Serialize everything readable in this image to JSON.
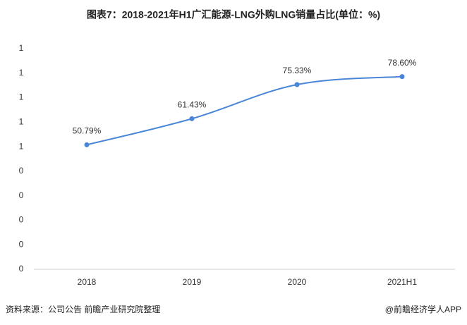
{
  "chart_data": {
    "type": "line",
    "title": "图表7：2018-2021年H1广汇能源-LNG外购LNG销量占比(单位：%)",
    "categories": [
      "2018",
      "2019",
      "2020",
      "2021H1"
    ],
    "series": [
      {
        "name": "外购LNG销量占比",
        "color": "#4a86d8",
        "values": [
          0.5079,
          0.6143,
          0.7533,
          0.786
        ],
        "value_labels": [
          "50.79%",
          "61.43%",
          "75.33%",
          "78.60%"
        ]
      }
    ],
    "ylim": [
      0,
      0.9
    ],
    "yticks": [
      0,
      {
        "value": 0.1,
        "label": "0"
      },
      {
        "value": 0.2,
        "label": "0"
      },
      {
        "value": 0.3,
        "label": "0"
      },
      {
        "value": 0.4,
        "label": "0"
      },
      {
        "value": 0.5,
        "label": "1"
      },
      {
        "value": 0.6,
        "label": "1"
      },
      {
        "value": 0.7,
        "label": "1"
      },
      {
        "value": 0.8,
        "label": "1"
      },
      {
        "value": 0.9,
        "label": "1"
      }
    ],
    "source": "资料来源：公司公告 前瞻产业研究院整理",
    "credit": "@前瞻经济学人APP"
  }
}
